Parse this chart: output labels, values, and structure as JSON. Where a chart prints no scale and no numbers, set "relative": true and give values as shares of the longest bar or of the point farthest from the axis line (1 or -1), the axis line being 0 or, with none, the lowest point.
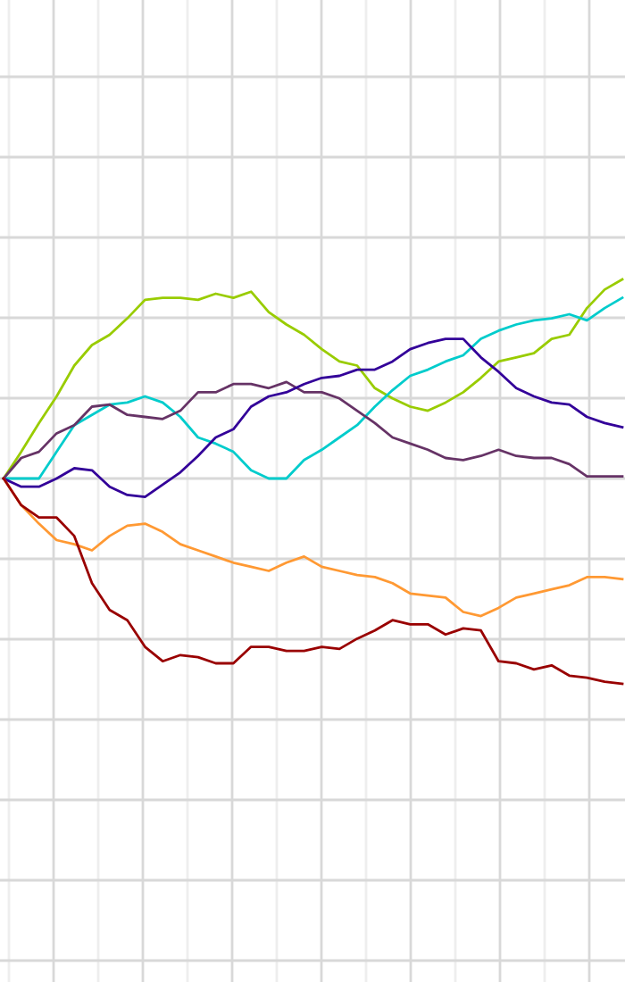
{
  "chart_data": {
    "type": "line",
    "relative": true,
    "grid": true,
    "marker": "none",
    "line_style": "solid",
    "categories": [
      null,
      null,
      null,
      null,
      null,
      null,
      null,
      null,
      null,
      null,
      null,
      null,
      null,
      null,
      null,
      null,
      null,
      null,
      null,
      null,
      null,
      null,
      null,
      null,
      null,
      null,
      null,
      null,
      null,
      null,
      null,
      null,
      null,
      null,
      null,
      null
    ],
    "series": [
      {
        "color": "#99cc00",
        "values": [
          0,
          0.13,
          0.27,
          0.4,
          0.55,
          0.65,
          0.7,
          0.78,
          0.87,
          0.88,
          0.88,
          0.87,
          0.9,
          0.88,
          0.91,
          0.81,
          0.75,
          0.7,
          0.63,
          0.57,
          0.55,
          0.44,
          0.39,
          0.35,
          0.33,
          0.37,
          0.42,
          0.49,
          0.57,
          0.59,
          0.61,
          0.68,
          0.7,
          0.83,
          0.92,
          0.97
        ]
      },
      {
        "color": "#00cccc",
        "values": [
          0,
          0,
          0,
          0.13,
          0.26,
          0.31,
          0.36,
          0.37,
          0.4,
          0.37,
          0.3,
          0.2,
          0.17,
          0.13,
          0.04,
          0,
          0,
          0.09,
          0.14,
          0.2,
          0.26,
          0.35,
          0.43,
          0.5,
          0.53,
          0.57,
          0.6,
          0.68,
          0.72,
          0.75,
          0.77,
          0.78,
          0.8,
          0.77,
          0.83,
          0.88
        ]
      },
      {
        "color": "#663366",
        "values": [
          0,
          0.1,
          0.13,
          0.22,
          0.26,
          0.35,
          0.36,
          0.31,
          0.3,
          0.29,
          0.33,
          0.42,
          0.42,
          0.46,
          0.46,
          0.44,
          0.47,
          0.42,
          0.42,
          0.39,
          0.33,
          0.27,
          0.2,
          0.17,
          0.14,
          0.1,
          0.09,
          0.11,
          0.14,
          0.11,
          0.1,
          0.1,
          0.07,
          0.01,
          0.01,
          0.01
        ]
      },
      {
        "color": "#330099",
        "values": [
          0,
          -0.04,
          -0.04,
          0,
          0.05,
          0.04,
          -0.04,
          -0.08,
          -0.09,
          -0.03,
          0.03,
          0.11,
          0.2,
          0.24,
          0.35,
          0.4,
          0.42,
          0.46,
          0.49,
          0.5,
          0.53,
          0.53,
          0.57,
          0.63,
          0.66,
          0.68,
          0.68,
          0.59,
          0.52,
          0.44,
          0.4,
          0.37,
          0.36,
          0.3,
          0.27,
          0.25
        ]
      },
      {
        "color": "#ff9933",
        "values": [
          0,
          -0.13,
          -0.22,
          -0.3,
          -0.32,
          -0.35,
          -0.28,
          -0.23,
          -0.22,
          -0.26,
          -0.32,
          -0.35,
          -0.38,
          -0.41,
          -0.43,
          -0.45,
          -0.41,
          -0.38,
          -0.43,
          -0.45,
          -0.47,
          -0.48,
          -0.51,
          -0.56,
          -0.57,
          -0.58,
          -0.65,
          -0.67,
          -0.63,
          -0.58,
          -0.56,
          -0.54,
          -0.52,
          -0.48,
          -0.48,
          -0.49
        ]
      },
      {
        "color": "#990000",
        "values": [
          0,
          -0.13,
          -0.19,
          -0.19,
          -0.28,
          -0.51,
          -0.64,
          -0.69,
          -0.82,
          -0.89,
          -0.86,
          -0.87,
          -0.9,
          -0.9,
          -0.82,
          -0.82,
          -0.84,
          -0.84,
          -0.82,
          -0.83,
          -0.78,
          -0.74,
          -0.69,
          -0.71,
          -0.71,
          -0.76,
          -0.73,
          -0.74,
          -0.89,
          -0.9,
          -0.93,
          -0.91,
          -0.96,
          -0.97,
          -0.99,
          -1
        ]
      }
    ]
  }
}
